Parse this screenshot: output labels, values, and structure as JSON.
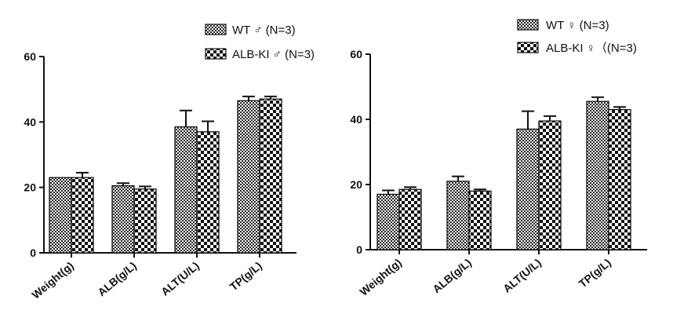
{
  "chart_data": [
    {
      "type": "bar",
      "categories": [
        "Weight(g)",
        "ALB(g/L)",
        "ALT(U/L)",
        "TP(g/L)"
      ],
      "series": [
        {
          "name": "WT ♂ (N=3)",
          "values": [
            23,
            20.5,
            38.5,
            46.5
          ],
          "errors": [
            0,
            0.8,
            5,
            1.3
          ],
          "pattern": "fine"
        },
        {
          "name": "ALB-KI ♂ (N=3)",
          "values": [
            23,
            19.5,
            37,
            47
          ],
          "errors": [
            1.5,
            0.8,
            3.2,
            0.8
          ],
          "pattern": "coarse"
        }
      ],
      "ylim": [
        0,
        60
      ],
      "yticks": [
        0,
        20,
        40,
        60
      ],
      "legend_position": "top-right"
    },
    {
      "type": "bar",
      "categories": [
        "Weight(g)",
        "ALB(g/L)",
        "ALT(U/L)",
        "TP(g/L)"
      ],
      "series": [
        {
          "name": "WT ♀ (N=3)",
          "values": [
            17,
            21,
            37,
            45.5
          ],
          "errors": [
            1.2,
            1.5,
            5.5,
            1.3
          ],
          "pattern": "fine"
        },
        {
          "name": "ALB-KI ♀（(N=3)",
          "values": [
            18.5,
            18,
            39.5,
            43
          ],
          "errors": [
            0.7,
            0.5,
            1.5,
            0.8
          ],
          "pattern": "coarse"
        }
      ],
      "ylim": [
        0,
        60
      ],
      "yticks": [
        0,
        20,
        40,
        60
      ],
      "legend_position": "top-right"
    }
  ],
  "colors": {
    "axis": "#111111",
    "bar_dark": "#111111",
    "bar_light": "#ffffff"
  }
}
